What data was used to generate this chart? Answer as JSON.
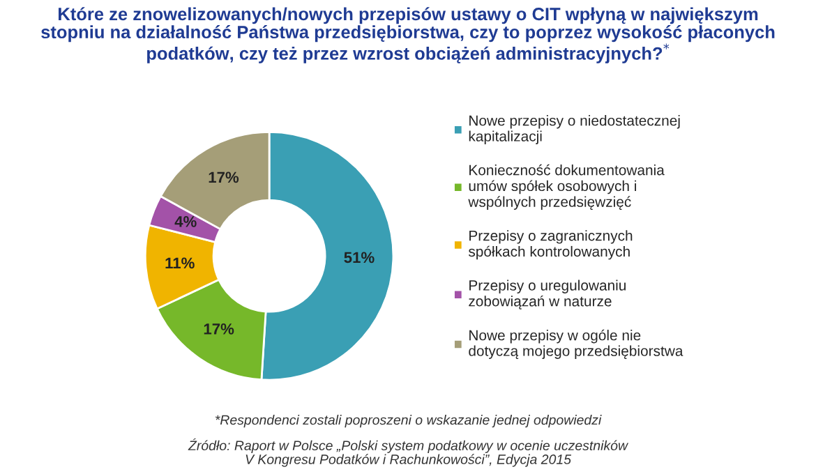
{
  "chart_data": {
    "type": "donut",
    "title": "Które ze znowelizowanych/nowych przepisów ustawy o CIT wpłyną w największym\nstopniu na działalność Państwa przedsiębiorstwa, czy to poprzez wysokość płaconych\npodatków, czy też przez wzrost obciążeń administracyjnych?$^{*}$",
    "categories": [
      "Nowe przepisy o niedostatecznej\nkapitalizacji",
      "Konieczność dokumentowania\numów spółek osobowych i\nwspólnych przedsięwzięć",
      "Przepisy o zagranicznych\nspółkach kontrolowanych",
      "Przepisy o uregulowaniu\nzobowiązań w naturze",
      "Nowe przepisy w ogóle nie\ndotyczą mojego przedsiębiorstwa"
    ],
    "values": [
      51,
      17,
      11,
      4,
      17
    ],
    "colors": [
      "#3a9fb4",
      "#76b82a",
      "#f0b400",
      "#a352a8",
      "#a59e78"
    ],
    "value_labels": [
      "51%",
      "17%",
      "11%",
      "4%",
      "17%"
    ],
    "legend": "right",
    "annotations": [
      "*Respondenci zostali poproszeni o wskazanie jednej odpowiedzi",
      "Źródło: Raport w Polsce „Polski system podatkowy w ocenie uczestników\nV Kongresu Podatków i Rachunkowości”, Edycja 2015"
    ]
  }
}
